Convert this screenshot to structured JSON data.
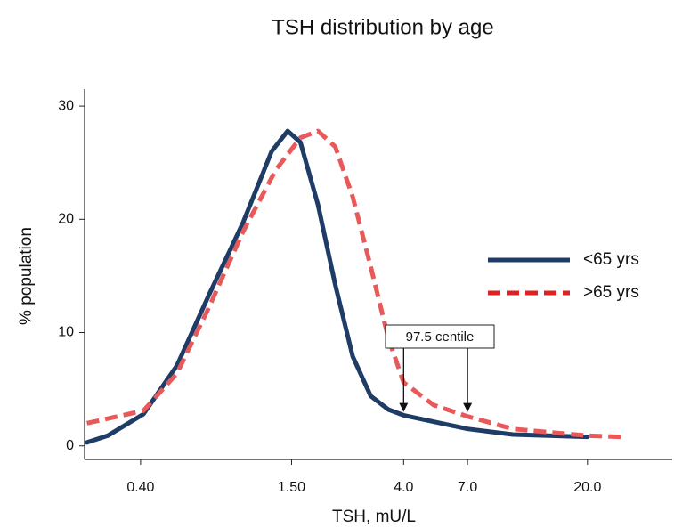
{
  "chart_data": {
    "type": "line",
    "title": "TSH distribution by age",
    "xlabel": "TSH, mU/L",
    "ylabel": "% population",
    "xscale": "log",
    "xlim": [
      0.245,
      42
    ],
    "ylim": [
      -1.2,
      31.5
    ],
    "xticks": [
      {
        "value": 0.4,
        "label": "0.40"
      },
      {
        "value": 1.5,
        "label": "1.50"
      },
      {
        "value": 4,
        "label": "4.0"
      },
      {
        "value": 7,
        "label": "7.0"
      },
      {
        "value": 20,
        "label": "20.0"
      }
    ],
    "yticks": [
      0,
      10,
      20,
      30
    ],
    "legend": "right",
    "series": [
      {
        "name": "<65 yrs",
        "color": "#1f3c66",
        "dash": false,
        "x": [
          0.25,
          0.3,
          0.41,
          0.55,
          0.73,
          0.98,
          1.26,
          1.45,
          1.62,
          1.89,
          2.2,
          2.56,
          3.0,
          3.5,
          4.0,
          7.0,
          10.4,
          20
        ],
        "values": [
          0.3,
          0.9,
          2.8,
          7.1,
          13.4,
          19.7,
          26,
          27.8,
          26.8,
          21.3,
          14.2,
          7.9,
          4.4,
          3.2,
          2.7,
          1.5,
          1.0,
          0.8
        ]
      },
      {
        "name": ">65 yrs",
        "color": "#e8595a",
        "dash": true,
        "x": [
          0.25,
          0.41,
          0.55,
          0.73,
          0.98,
          1.31,
          1.62,
          1.89,
          2.2,
          2.56,
          3.0,
          3.5,
          4.0,
          5.2,
          7.0,
          10.4,
          20,
          26.9
        ],
        "values": [
          2.0,
          3.1,
          6.4,
          12.3,
          18.9,
          24.4,
          27.2,
          27.8,
          26.4,
          22,
          15.8,
          9.5,
          5.6,
          3.6,
          2.6,
          1.5,
          0.9,
          0.8
        ]
      }
    ],
    "annotation": {
      "text": "97.5 centile",
      "x": [
        4,
        7
      ],
      "y": [
        3,
        3
      ]
    }
  }
}
